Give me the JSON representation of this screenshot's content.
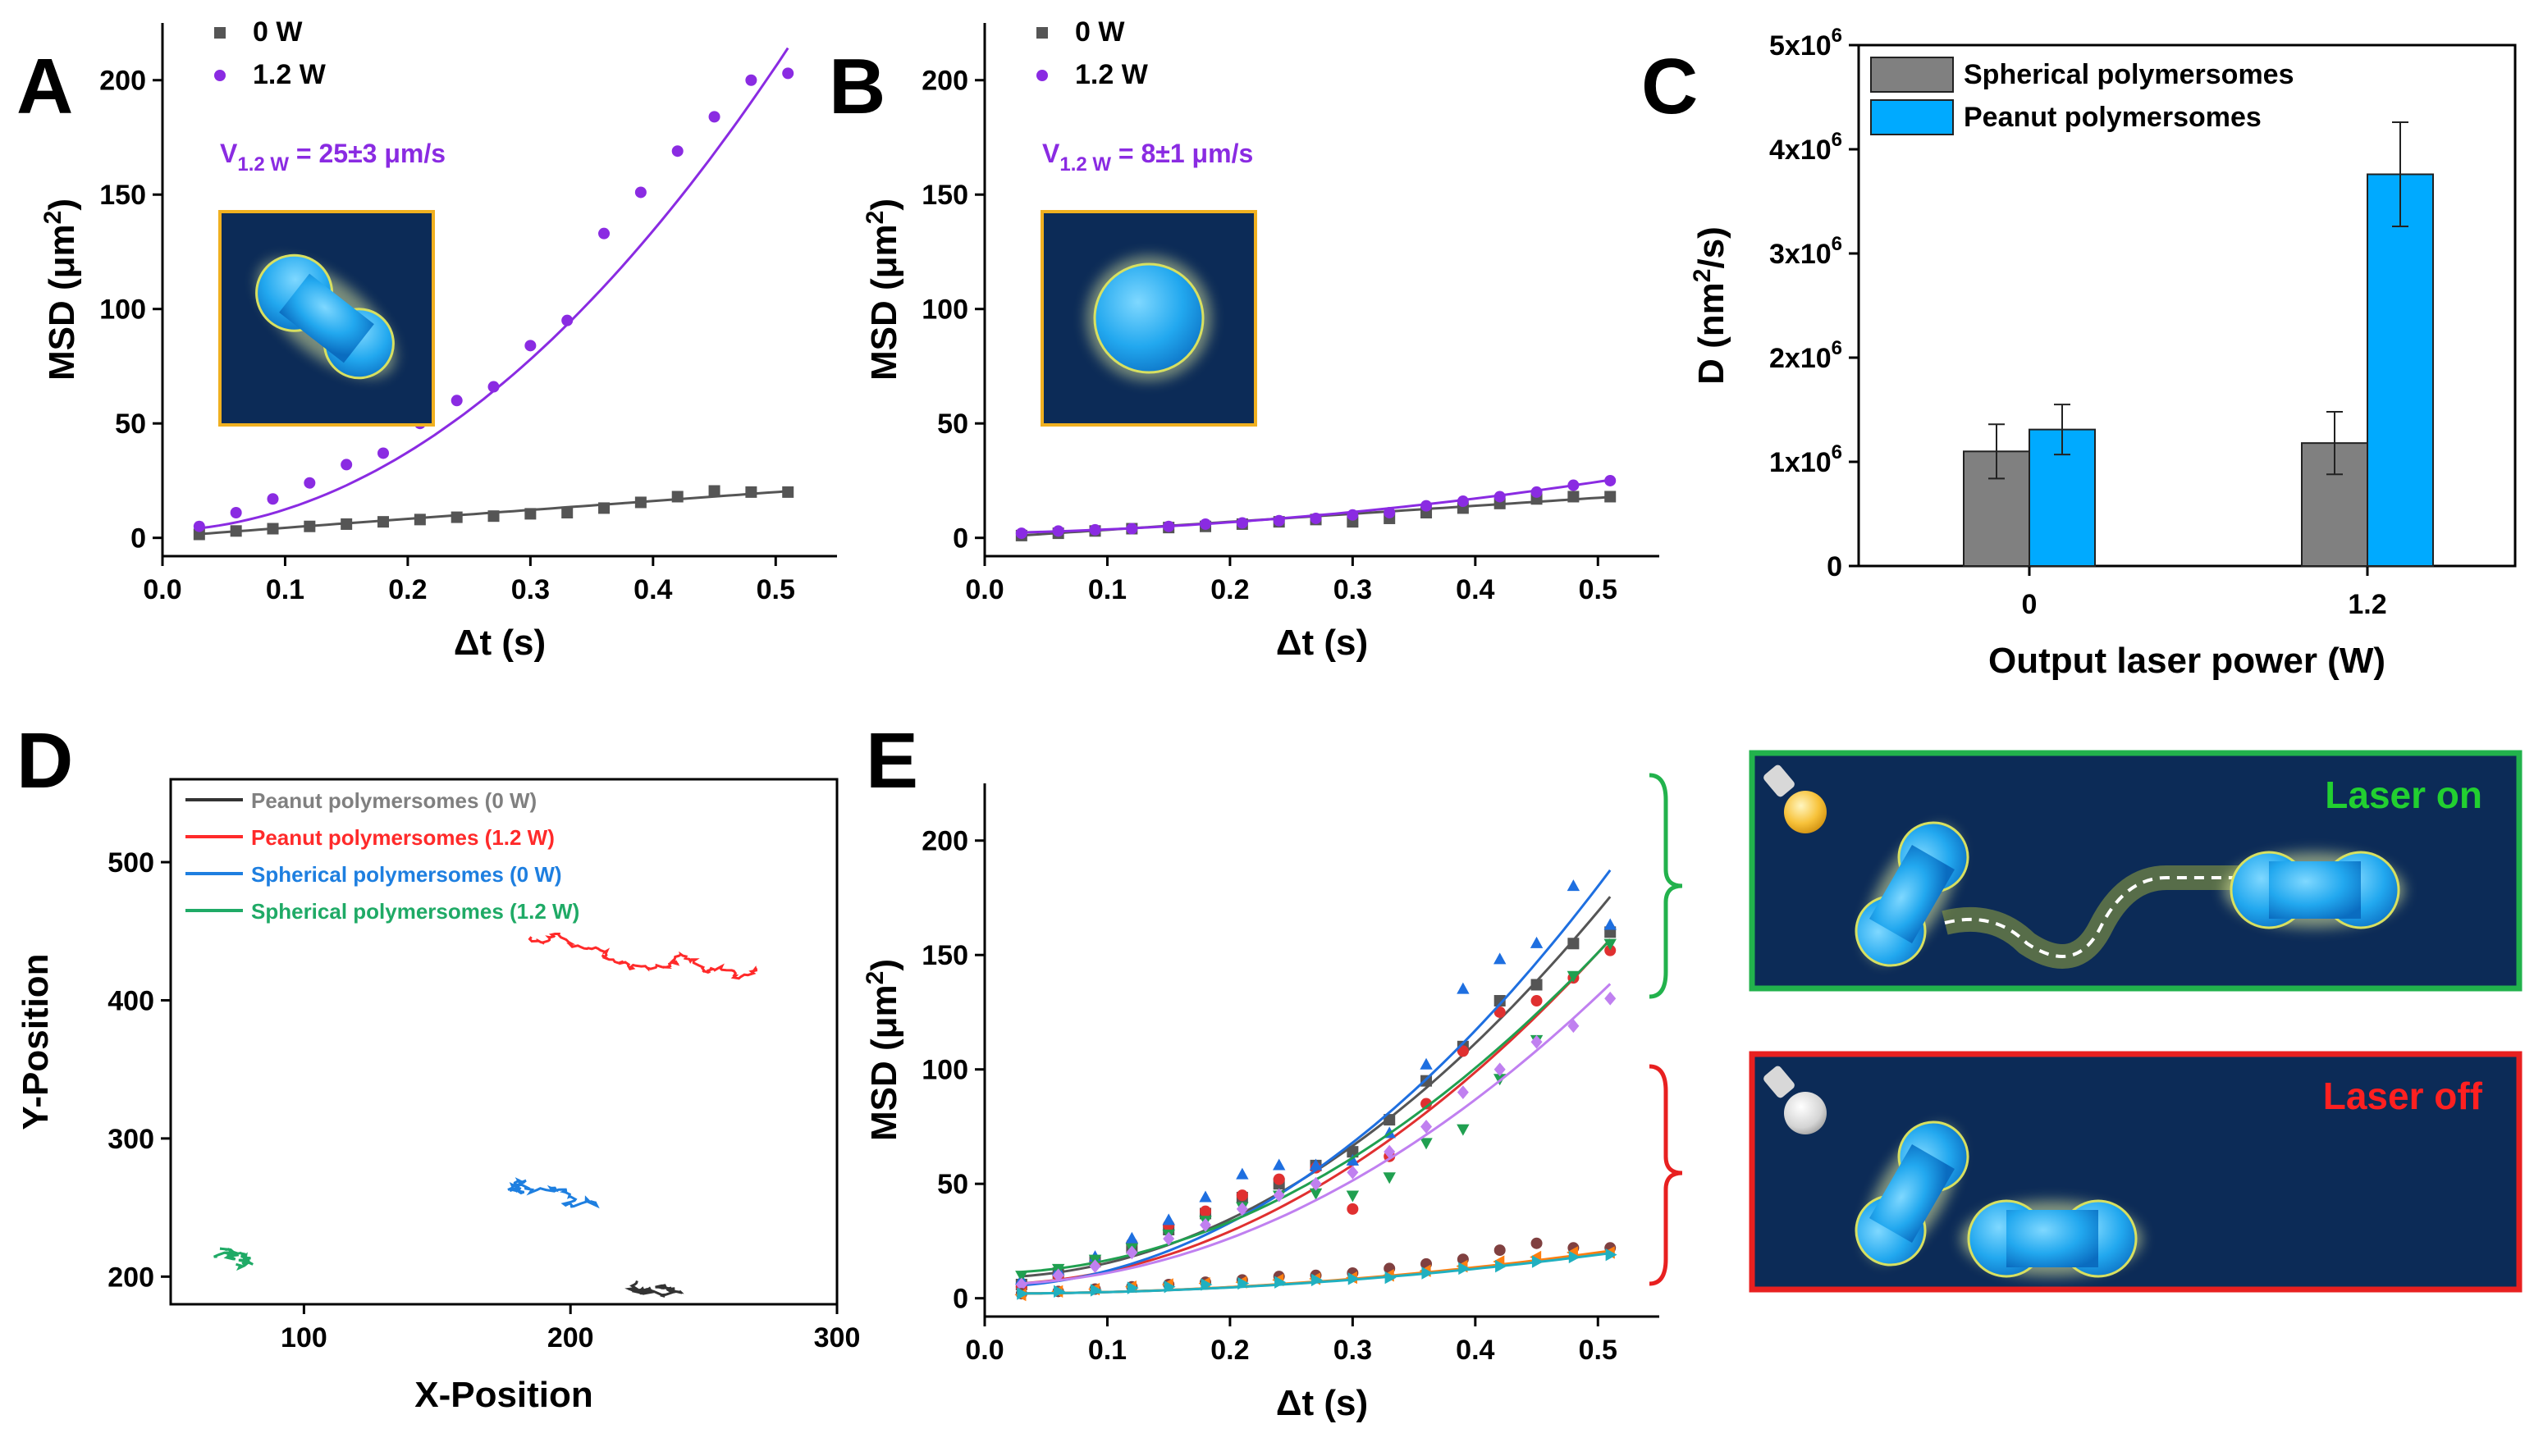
{
  "panels": {
    "A": "A",
    "B": "B",
    "C": "C",
    "D": "D",
    "E": "E"
  },
  "chart_data": [
    {
      "id": "A",
      "type": "scatter",
      "xlabel": "Δt (s)",
      "ylabel_main": "MSD (μm",
      "ylabel_sup": "2",
      "ylabel_tail": ")",
      "xlim": [
        0.0,
        0.55
      ],
      "ylim": [
        -8,
        225
      ],
      "xticks": [
        "0.0",
        "0.1",
        "0.2",
        "0.3",
        "0.4",
        "0.5"
      ],
      "yticks": [
        "0",
        "50",
        "100",
        "150",
        "200"
      ],
      "annotation": {
        "main": "V",
        "sub": "1.2 W",
        "tail": " = 25±3 μm/s"
      },
      "series": [
        {
          "name": "0 W",
          "color": "#555555",
          "marker": "square",
          "x": [
            0.03,
            0.06,
            0.09,
            0.12,
            0.15,
            0.18,
            0.21,
            0.24,
            0.27,
            0.3,
            0.33,
            0.36,
            0.39,
            0.42,
            0.45,
            0.48,
            0.51
          ],
          "y": [
            1.5,
            3,
            4,
            5,
            6,
            7,
            8,
            9,
            9.5,
            10.5,
            11,
            13,
            15.5,
            18,
            20.5,
            20,
            20
          ],
          "fit": {
            "kind": "linear",
            "a": 0.5,
            "b": 39
          }
        },
        {
          "name": "1.2 W",
          "color": "#8a2be2",
          "marker": "circle",
          "x": [
            0.03,
            0.06,
            0.09,
            0.12,
            0.15,
            0.18,
            0.21,
            0.24,
            0.27,
            0.3,
            0.33,
            0.36,
            0.39,
            0.42,
            0.45,
            0.48,
            0.51
          ],
          "y": [
            5,
            11,
            17,
            24,
            32,
            37,
            50,
            60,
            66,
            84,
            95,
            133,
            151,
            169,
            184,
            200,
            203
          ],
          "fit": {
            "kind": "quad",
            "a": 3,
            "b": 16,
            "c": 780
          }
        }
      ]
    },
    {
      "id": "B",
      "type": "scatter",
      "xlabel": "Δt (s)",
      "ylabel_main": "MSD (μm",
      "ylabel_sup": "2",
      "ylabel_tail": ")",
      "xlim": [
        0.0,
        0.55
      ],
      "ylim": [
        -8,
        225
      ],
      "xticks": [
        "0.0",
        "0.1",
        "0.2",
        "0.3",
        "0.4",
        "0.5"
      ],
      "yticks": [
        "0",
        "50",
        "100",
        "150",
        "200"
      ],
      "annotation": {
        "main": "V",
        "sub": "1.2 W",
        "tail": " = 8±1 μm/s"
      },
      "series": [
        {
          "name": "0 W",
          "color": "#555555",
          "marker": "square",
          "x": [
            0.03,
            0.06,
            0.09,
            0.12,
            0.15,
            0.18,
            0.21,
            0.24,
            0.27,
            0.3,
            0.33,
            0.36,
            0.39,
            0.42,
            0.45,
            0.48,
            0.51
          ],
          "y": [
            1,
            2,
            3,
            4,
            4.5,
            5,
            6,
            7,
            8,
            7,
            8.5,
            11,
            13,
            15,
            17,
            18,
            18
          ],
          "fit": {
            "kind": "linear",
            "a": 0,
            "b": 35
          }
        },
        {
          "name": "1.2 W",
          "color": "#8a2be2",
          "marker": "circle",
          "x": [
            0.03,
            0.06,
            0.09,
            0.12,
            0.15,
            0.18,
            0.21,
            0.24,
            0.27,
            0.3,
            0.33,
            0.36,
            0.39,
            0.42,
            0.45,
            0.48,
            0.51
          ],
          "y": [
            2,
            3,
            3.5,
            4,
            5,
            6,
            6.5,
            7.5,
            8.5,
            10,
            11,
            14,
            16,
            18,
            20,
            23,
            25
          ],
          "fit": {
            "kind": "quad",
            "a": 2,
            "b": 10,
            "c": 70
          }
        }
      ]
    },
    {
      "id": "C",
      "type": "bar",
      "xlabel": "Output laser power (W)",
      "ylabel_main": "D (nm",
      "ylabel_sup": "2",
      "ylabel_tail": "/s)",
      "ylim": [
        0,
        5000000
      ],
      "yticks": [
        {
          "v": 0,
          "main": "0",
          "sup": ""
        },
        {
          "v": 1000000,
          "main": "1x10",
          "sup": "6"
        },
        {
          "v": 2000000,
          "main": "2x10",
          "sup": "6"
        },
        {
          "v": 3000000,
          "main": "3x10",
          "sup": "6"
        },
        {
          "v": 4000000,
          "main": "4x10",
          "sup": "6"
        },
        {
          "v": 5000000,
          "main": "5x10",
          "sup": "6"
        }
      ],
      "categories": [
        "0",
        "1.2"
      ],
      "series": [
        {
          "name": "Spherical polymersomes",
          "color": "#808080",
          "values": [
            1100000,
            1180000
          ],
          "errors": [
            260000,
            300000
          ]
        },
        {
          "name": "Peanut polymersomes",
          "color": "#00aaff",
          "values": [
            1310000,
            3760000
          ],
          "errors": [
            240000,
            500000
          ]
        }
      ]
    },
    {
      "id": "D",
      "type": "line",
      "xlabel": "X-Position",
      "ylabel": "Y-Position",
      "xlim": [
        50,
        300
      ],
      "ylim": [
        180,
        560
      ],
      "xticks": [
        "100",
        "200",
        "300"
      ],
      "yticks": [
        "200",
        "300",
        "400",
        "500"
      ],
      "series": [
        {
          "name": "Peanut polymersomes (0 W)",
          "color": "#808080",
          "line": "#333333",
          "center": [
            225,
            197
          ],
          "spread": [
            9,
            6
          ],
          "steps": 70,
          "drift": [
            0.2,
            0.05
          ]
        },
        {
          "name": "Peanut polymersomes (1.2 W)",
          "color": "#ff2a2a",
          "line": "#ff2a2a",
          "center": [
            185,
            445
          ],
          "spread": [
            5,
            6
          ],
          "steps": 140,
          "drift": [
            0.62,
            -0.24
          ]
        },
        {
          "name": "Spherical polymersomes (0 W)",
          "color": "#1e7fe0",
          "line": "#1e7fe0",
          "center": [
            180,
            265
          ],
          "spread": [
            9,
            8
          ],
          "steps": 70,
          "drift": [
            0.2,
            -0.05
          ]
        },
        {
          "name": "Spherical polymersomes (1.2 W)",
          "color": "#1faa66",
          "line": "#1faa66",
          "center": [
            67,
            215
          ],
          "spread": [
            8,
            6
          ],
          "steps": 70,
          "drift": [
            0.1,
            0
          ]
        }
      ]
    },
    {
      "id": "E",
      "type": "scatter",
      "xlabel": "Δt (s)",
      "ylabel_main": "MSD (μm",
      "ylabel_sup": "2",
      "ylabel_tail": ")",
      "xlim": [
        0.0,
        0.55
      ],
      "ylim": [
        -8,
        225
      ],
      "xticks": [
        "0.0",
        "0.1",
        "0.2",
        "0.3",
        "0.4",
        "0.5"
      ],
      "yticks": [
        "0",
        "50",
        "100",
        "150",
        "200"
      ],
      "on_series": [
        {
          "color": "#555555",
          "marker": "square",
          "k": 640,
          "b": 9,
          "y": [
            6,
            11,
            16,
            22,
            30,
            37,
            44,
            50,
            58,
            64,
            78,
            95,
            110,
            130,
            137,
            155,
            160
          ]
        },
        {
          "color": "#e03030",
          "marker": "circle",
          "k": 580,
          "b": 6,
          "y": [
            5,
            10,
            16,
            24,
            32,
            38,
            45,
            52,
            57,
            39,
            62,
            85,
            108,
            125,
            130,
            140,
            152
          ]
        },
        {
          "color": "#1e6fe0",
          "marker": "triangle",
          "k": 700,
          "b": 5,
          "y": [
            8,
            12,
            18,
            26,
            34,
            44,
            54,
            58,
            58,
            60,
            72,
            102,
            135,
            148,
            155,
            180,
            163
          ]
        },
        {
          "color": "#20a050",
          "marker": "triangle-down",
          "k": 560,
          "b": 11,
          "y": [
            10,
            13,
            17,
            22,
            28,
            34,
            40,
            45,
            46,
            45,
            53,
            68,
            74,
            96,
            113,
            141,
            155
          ]
        },
        {
          "color": "#c080f0",
          "marker": "diamond",
          "k": 505,
          "b": 6,
          "y": [
            6,
            10,
            14,
            20,
            26,
            32,
            39,
            45,
            50,
            55,
            64,
            75,
            90,
            100,
            112,
            119,
            131
          ]
        }
      ],
      "off_series": [
        {
          "color": "#804040",
          "marker": "circle",
          "k": 70,
          "b": 2,
          "y": [
            2,
            3,
            4,
            5,
            6,
            7,
            8,
            9.5,
            10,
            11,
            13,
            15,
            17,
            21,
            24,
            22,
            22
          ]
        },
        {
          "color": "#ff7f10",
          "marker": "triangle-left",
          "k": 72,
          "b": 2,
          "y": [
            1.5,
            3,
            4,
            5,
            6,
            6.5,
            7,
            8,
            8.5,
            9,
            10,
            12,
            14,
            16,
            18,
            20,
            20
          ]
        },
        {
          "color": "#20b0c0",
          "marker": "triangle-right",
          "k": 68,
          "b": 2,
          "y": [
            2,
            3,
            3.5,
            4.5,
            5,
            6,
            6.5,
            7,
            8,
            8.5,
            9,
            11,
            13,
            14,
            16,
            18,
            19
          ]
        }
      ]
    }
  ],
  "schematic": {
    "laser_on": "Laser on",
    "laser_off": "Laser off"
  }
}
